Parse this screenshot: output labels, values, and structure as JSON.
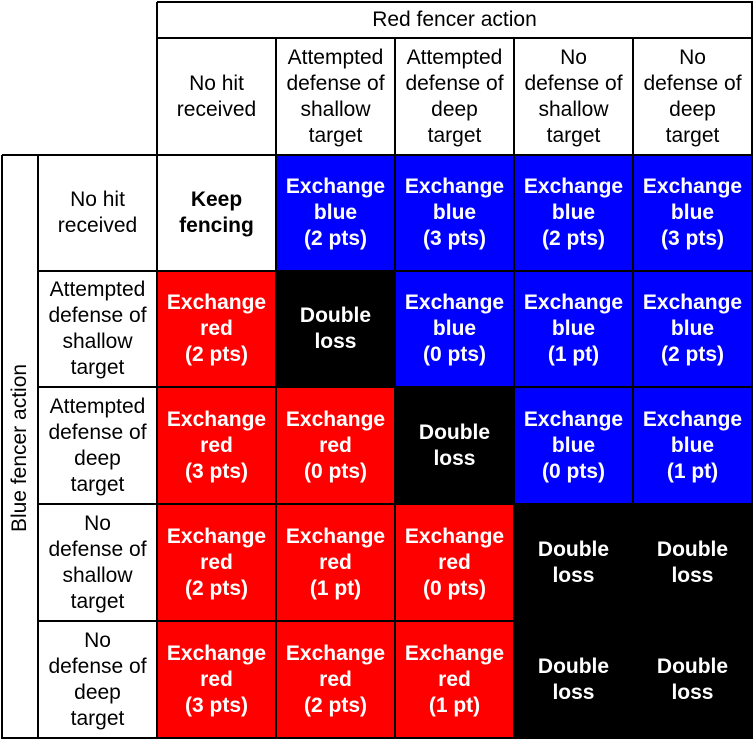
{
  "top_header": "Red fencer action",
  "side_header": "Blue fencer action",
  "columns": [
    "No hit\nreceived",
    "Attempted\ndefense of\nshallow\ntarget",
    "Attempted\ndefense of\ndeep\ntarget",
    "No\ndefense of\nshallow\ntarget",
    "No\ndefense of\ndeep\ntarget"
  ],
  "rows": [
    "No hit\nreceived",
    "Attempted\ndefense of\nshallow\ntarget",
    "Attempted\ndefense of\ndeep\ntarget",
    "No\ndefense of\nshallow\ntarget",
    "No\ndefense of\ndeep\ntarget"
  ],
  "outcomes": [
    [
      {
        "text": "Keep\nfencing",
        "color": "white"
      },
      {
        "text": "Exchange\nblue\n(2 pts)",
        "color": "blue"
      },
      {
        "text": "Exchange\nblue\n(3 pts)",
        "color": "blue"
      },
      {
        "text": "Exchange\nblue\n(2 pts)",
        "color": "blue"
      },
      {
        "text": "Exchange\nblue\n(3 pts)",
        "color": "blue"
      }
    ],
    [
      {
        "text": "Exchange\nred\n(2 pts)",
        "color": "red"
      },
      {
        "text": "Double\nloss",
        "color": "black"
      },
      {
        "text": "Exchange\nblue\n(0 pts)",
        "color": "blue"
      },
      {
        "text": "Exchange\nblue\n(1 pt)",
        "color": "blue"
      },
      {
        "text": "Exchange\nblue\n(2 pts)",
        "color": "blue"
      }
    ],
    [
      {
        "text": "Exchange\nred\n(3 pts)",
        "color": "red"
      },
      {
        "text": "Exchange\nred\n(0 pts)",
        "color": "red"
      },
      {
        "text": "Double\nloss",
        "color": "black"
      },
      {
        "text": "Exchange\nblue\n(0 pts)",
        "color": "blue"
      },
      {
        "text": "Exchange\nblue\n(1 pt)",
        "color": "blue"
      }
    ],
    [
      {
        "text": "Exchange\nred\n(2 pts)",
        "color": "red"
      },
      {
        "text": "Exchange\nred\n(1 pt)",
        "color": "red"
      },
      {
        "text": "Exchange\nred\n(0 pts)",
        "color": "red"
      },
      {
        "text": "Double\nloss",
        "color": "black"
      },
      {
        "text": "Double\nloss",
        "color": "black"
      }
    ],
    [
      {
        "text": "Exchange\nred\n(3 pts)",
        "color": "red"
      },
      {
        "text": "Exchange\nred\n(2 pts)",
        "color": "red"
      },
      {
        "text": "Exchange\nred\n(1 pt)",
        "color": "red"
      },
      {
        "text": "Double\nloss",
        "color": "black"
      },
      {
        "text": "Double\nloss",
        "color": "black"
      }
    ]
  ]
}
